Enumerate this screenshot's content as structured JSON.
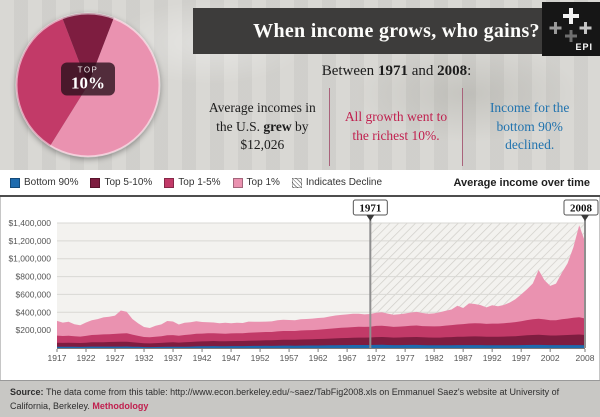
{
  "header": {
    "title": "When income grows, who gains?",
    "logo_text": "EPI",
    "pie_label_top": "TOP",
    "pie_label_pct": "10%",
    "period": {
      "prefix": "Between ",
      "year_start": "1971",
      "mid": " and ",
      "year_end": "2008",
      "suffix": ":"
    },
    "stats": {
      "average_before": "Average incomes in the U.S. ",
      "average_bold": "grew",
      "average_after": " by",
      "average_amount": "$12,026",
      "top10": "All growth went to the richest 10%.",
      "bottom90": "Income for the bottom 90% declined."
    }
  },
  "legend": {
    "items": [
      {
        "id": "bottom-90",
        "label": "Bottom 90%",
        "color": "#1e6bae"
      },
      {
        "id": "top-5-10",
        "label": "Top 5-10%",
        "color": "#7e1d40"
      },
      {
        "id": "top-1-5",
        "label": "Top 1-5%",
        "color": "#c23a68"
      },
      {
        "id": "top-1",
        "label": "Top 1%",
        "color": "#ea92b0"
      },
      {
        "id": "indicates-decline",
        "label": "Indicates Decline",
        "hatch": true
      }
    ]
  },
  "chart": {
    "right_title": "Average income over time"
  },
  "footer": {
    "source_label": "Source: ",
    "source_text": "The data come from this table: http://www.econ.berkeley.edu/~saez/TabFig2008.xls on Emmanuel Saez's website at University of California, Berkeley. ",
    "methodology_label": "Methodology"
  },
  "chart_data": [
    {
      "type": "area",
      "stacked": true,
      "title": "Average income over time",
      "xlabel": "",
      "ylabel": "",
      "values_unit": "thousands_of_dollars",
      "ylim": [
        0,
        1400
      ],
      "y_ticks": [
        {
          "value": 200,
          "label": "$200,000"
        },
        {
          "value": 400,
          "label": "$400,000"
        },
        {
          "value": 600,
          "label": "$600,000"
        },
        {
          "value": 800,
          "label": "$800,000"
        },
        {
          "value": 1000,
          "label": "$1,000,000"
        },
        {
          "value": 1200,
          "label": "$1,200,000"
        },
        {
          "value": 1400,
          "label": "$1,400,000"
        }
      ],
      "x_ticks": [
        1917,
        1922,
        1927,
        1932,
        1937,
        1942,
        1947,
        1952,
        1957,
        1962,
        1967,
        1972,
        1977,
        1982,
        1987,
        1992,
        1997,
        2002,
        2008
      ],
      "markers": [
        {
          "year": 1971,
          "label": "1971"
        },
        {
          "year": 2008,
          "label": "2008"
        }
      ],
      "decline_range": [
        1971,
        2008
      ],
      "x": [
        1917,
        1918,
        1919,
        1920,
        1921,
        1922,
        1923,
        1924,
        1925,
        1926,
        1927,
        1928,
        1929,
        1930,
        1931,
        1932,
        1933,
        1934,
        1935,
        1936,
        1937,
        1938,
        1939,
        1940,
        1941,
        1942,
        1943,
        1944,
        1945,
        1946,
        1947,
        1948,
        1949,
        1950,
        1951,
        1952,
        1953,
        1954,
        1955,
        1956,
        1957,
        1958,
        1959,
        1960,
        1961,
        1962,
        1963,
        1964,
        1965,
        1966,
        1967,
        1968,
        1969,
        1970,
        1971,
        1972,
        1973,
        1974,
        1975,
        1976,
        1977,
        1978,
        1979,
        1980,
        1981,
        1982,
        1983,
        1984,
        1985,
        1986,
        1987,
        1988,
        1989,
        1990,
        1991,
        1992,
        1993,
        1994,
        1995,
        1996,
        1997,
        1998,
        1999,
        2000,
        2001,
        2002,
        2003,
        2004,
        2005,
        2006,
        2007,
        2008
      ],
      "series": [
        {
          "name": "Bottom 90%",
          "color": "#1e6bae",
          "values": [
            14,
            13.5,
            14,
            13,
            12.5,
            13.5,
            16,
            15.5,
            15.5,
            16,
            16,
            16,
            17,
            15,
            13,
            11,
            10.5,
            11.5,
            12.5,
            14,
            14.5,
            13.5,
            15,
            15.5,
            17.5,
            19,
            20.5,
            21,
            20.5,
            20,
            21,
            21.5,
            21,
            22.5,
            23,
            23.5,
            24.5,
            24,
            25.5,
            26.5,
            26.5,
            26,
            27,
            27.5,
            27.5,
            28.5,
            29,
            30,
            31,
            32,
            32.5,
            33.5,
            34,
            33.5,
            33.5,
            35,
            35.5,
            34,
            32.5,
            33,
            33.5,
            34.5,
            34.5,
            32.5,
            31.5,
            30.5,
            30,
            31,
            31.5,
            32,
            32,
            32.5,
            32.5,
            32,
            31,
            30.5,
            30,
            30.5,
            31,
            31.5,
            32.5,
            34,
            34.5,
            34.5,
            33.5,
            32.5,
            32,
            32.5,
            32.5,
            33,
            33,
            31.5
          ]
        },
        {
          "name": "Top 5-10%",
          "color": "#7e1d40",
          "values": [
            45,
            44,
            45,
            44,
            43,
            45,
            48,
            49,
            50,
            51,
            52,
            53,
            54,
            50,
            46,
            42,
            41,
            43,
            45,
            48,
            49,
            47,
            50,
            52,
            54,
            55,
            56,
            57,
            56,
            55,
            56,
            57,
            57,
            59,
            60,
            61,
            62,
            62,
            64,
            66,
            66,
            66,
            68,
            69,
            70,
            72,
            73,
            75,
            77,
            79,
            80,
            82,
            83,
            83,
            84,
            87,
            88,
            86,
            84,
            85,
            86,
            88,
            89,
            87,
            86,
            86,
            87,
            89,
            91,
            93,
            95,
            96,
            97,
            97,
            95,
            96,
            96,
            97,
            99,
            101,
            104,
            108,
            111,
            113,
            111,
            108,
            108,
            111,
            113,
            116,
            118,
            114
          ]
        },
        {
          "name": "Top 1-5%",
          "color": "#c23a68",
          "values": [
            80,
            77,
            79,
            75,
            72,
            77,
            82,
            84,
            87,
            88,
            90,
            93,
            95,
            85,
            77,
            70,
            68,
            72,
            75,
            80,
            81,
            77,
            81,
            84,
            87,
            87,
            88,
            88,
            86,
            85,
            86,
            87,
            87,
            90,
            91,
            92,
            93,
            93,
            96,
            98,
            98,
            98,
            101,
            102,
            103,
            105,
            107,
            110,
            113,
            115,
            117,
            119,
            120,
            120,
            121,
            125,
            126,
            123,
            120,
            122,
            124,
            127,
            129,
            126,
            125,
            125,
            127,
            131,
            134,
            138,
            141,
            146,
            148,
            147,
            144,
            147,
            147,
            149,
            153,
            158,
            164,
            171,
            177,
            181,
            176,
            170,
            171,
            178,
            184,
            190,
            193,
            185
          ]
        },
        {
          "name": "Top 1%",
          "color": "#ea92b0",
          "values": [
            165,
            150,
            155,
            135,
            128,
            150,
            165,
            175,
            190,
            195,
            205,
            258,
            240,
            175,
            140,
            112,
            105,
            122,
            132,
            160,
            152,
            126,
            136,
            138,
            140,
            130,
            125,
            120,
            115,
            122,
            115,
            118,
            115,
            124,
            120,
            118,
            116,
            119,
            126,
            127,
            123,
            121,
            126,
            126,
            129,
            130,
            132,
            138,
            143,
            145,
            147,
            150,
            146,
            140,
            142,
            148,
            150,
            142,
            135,
            139,
            143,
            148,
            152,
            146,
            142,
            146,
            156,
            166,
            175,
            210,
            180,
            225,
            215,
            205,
            185,
            205,
            195,
            205,
            225,
            255,
            300,
            345,
            400,
            545,
            440,
            385,
            410,
            520,
            620,
            790,
            1030,
            860
          ]
        }
      ],
      "grid": true,
      "legend_position": "top-left"
    },
    {
      "type": "pie",
      "title": "Share of income, top 10% highlighted",
      "start_angle": -21,
      "center_label": "TOP 10%",
      "slices": [
        {
          "label": "Top 5-10%",
          "pct": 11.7,
          "color": "#7e1d40"
        },
        {
          "label": "Top 1%",
          "pct": 53.0,
          "color": "#ea92b0"
        },
        {
          "label": "Top 1-5%",
          "pct": 35.3,
          "color": "#c23a68"
        }
      ]
    }
  ]
}
